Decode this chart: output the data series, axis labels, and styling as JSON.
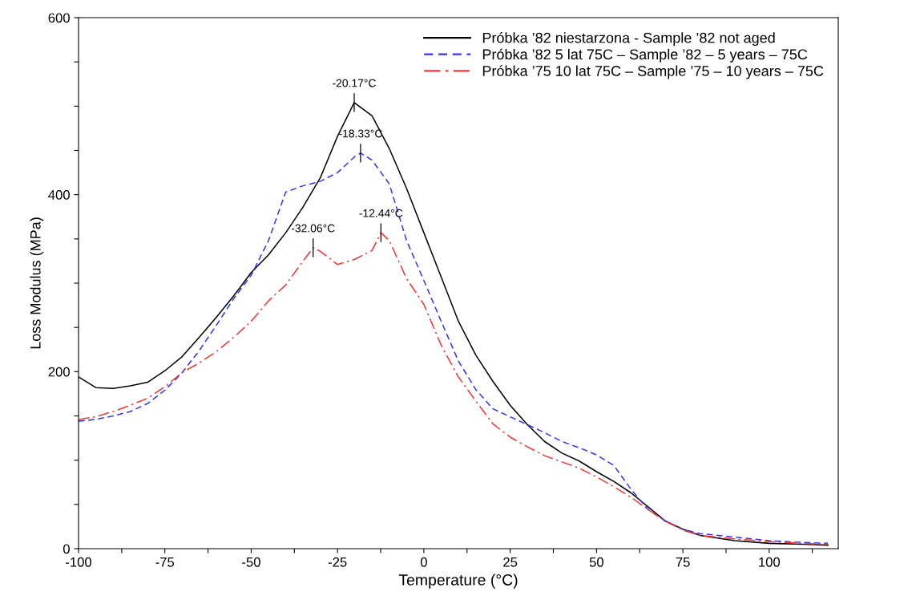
{
  "chart_data": {
    "type": "line",
    "xlabel": "Temperature (°C)",
    "ylabel": "Loss Modulus (MPa)",
    "xlim": [
      -100,
      120
    ],
    "ylim": [
      0,
      600
    ],
    "xticks": [
      -100,
      {
        "value": -87.5,
        "label": null
      },
      -75,
      {
        "value": -62.5,
        "label": null
      },
      -50,
      {
        "value": -37.5,
        "label": null
      },
      -25,
      {
        "value": -12.5,
        "label": null
      },
      0,
      {
        "value": 12.5,
        "label": null
      },
      25,
      {
        "value": 37.5,
        "label": null
      },
      50,
      {
        "value": 62.5,
        "label": null
      },
      75,
      {
        "value": 87.5,
        "label": null
      },
      100,
      {
        "value": 112.5,
        "label": null
      }
    ],
    "yticks": [
      0,
      {
        "value": 50,
        "label": null
      },
      {
        "value": 100,
        "label": null
      },
      {
        "value": 150,
        "label": null
      },
      200,
      {
        "value": 250,
        "label": null
      },
      {
        "value": 300,
        "label": null
      },
      {
        "value": 350,
        "label": null
      },
      400,
      {
        "value": 450,
        "label": null
      },
      {
        "value": 500,
        "label": null
      },
      {
        "value": 550,
        "label": null
      },
      600
    ],
    "grid": false,
    "legend": "top right",
    "marker": "none",
    "series": [
      {
        "name": "Próbka ’82 niestarzona - Sample ’82 not aged",
        "color": "#000000",
        "line_style": "solid",
        "x": [
          -100,
          -95,
          -90,
          -85,
          -80,
          -75,
          -70,
          -65,
          -60,
          -55,
          -50,
          -45,
          -40,
          -35,
          -30,
          -25,
          -20.17,
          -15,
          -10,
          -5,
          0,
          5,
          10,
          15,
          20,
          25,
          30,
          35,
          40,
          45,
          50,
          55,
          60,
          65,
          70,
          75,
          80,
          90,
          100,
          110,
          117
        ],
        "values": [
          194,
          182,
          181,
          184,
          188,
          201,
          217,
          239,
          262,
          286,
          312,
          332,
          357,
          386,
          419,
          466,
          504,
          489,
          452,
          407,
          357,
          307,
          257,
          219,
          189,
          162,
          140,
          121,
          108,
          99,
          87,
          76,
          63,
          47,
          31,
          22,
          15,
          9,
          6,
          5,
          4
        ]
      },
      {
        "name": "Próbka ’82 5 lat 75C – Sample ’82 – 5 years – 75C",
        "color": "#3333ff",
        "line_style": "dashed",
        "x": [
          -100,
          -95,
          -90,
          -85,
          -80,
          -75,
          -70,
          -65,
          -60,
          -55,
          -50,
          -45,
          -40,
          -35,
          -30,
          -25,
          -20,
          -18.33,
          -15,
          -10,
          -5,
          0,
          5,
          10,
          15,
          20,
          25,
          30,
          35,
          40,
          45,
          50,
          55,
          60,
          65,
          70,
          75,
          80,
          90,
          100,
          110,
          117
        ],
        "values": [
          144,
          146,
          150,
          155,
          164,
          179,
          199,
          224,
          253,
          283,
          309,
          348,
          403,
          410,
          415,
          425,
          443,
          447,
          439,
          412,
          348,
          303,
          257,
          212,
          180,
          158,
          149,
          140,
          131,
          121,
          114,
          106,
          94,
          67,
          44,
          31,
          22,
          17,
          13,
          9,
          7,
          6
        ]
      },
      {
        "name": "Próbka ’75 10 lat 75C – Sample ’75 – 10 years – 75C",
        "color": "#ff3333",
        "line_style": "dashdot",
        "x": [
          -100,
          -95,
          -90,
          -85,
          -80,
          -75,
          -70,
          -65,
          -60,
          -55,
          -50,
          -45,
          -40,
          -35,
          -32.06,
          -30,
          -25,
          -20,
          -15,
          -12.44,
          -10,
          -5,
          0,
          5,
          10,
          15,
          20,
          25,
          30,
          35,
          40,
          45,
          50,
          55,
          60,
          65,
          70,
          75,
          80,
          90,
          100,
          110,
          117
        ],
        "values": [
          146,
          149,
          155,
          162,
          170,
          183,
          199,
          210,
          223,
          239,
          257,
          280,
          298,
          325,
          340,
          336,
          321,
          327,
          337,
          357,
          348,
          305,
          276,
          230,
          194,
          167,
          141,
          126,
          115,
          105,
          98,
          91,
          81,
          70,
          58,
          44,
          31,
          21,
          15,
          11,
          8,
          6,
          5
        ]
      }
    ],
    "annotations": [
      {
        "text": "-20.17°C",
        "x": -20.17,
        "y": 504
      },
      {
        "text": "-18.33°C",
        "x": -18.33,
        "y": 447
      },
      {
        "text": "-32.06°C",
        "x": -32.06,
        "y": 340
      },
      {
        "text": "-12.44°C",
        "x": -12.44,
        "y": 357
      }
    ]
  }
}
